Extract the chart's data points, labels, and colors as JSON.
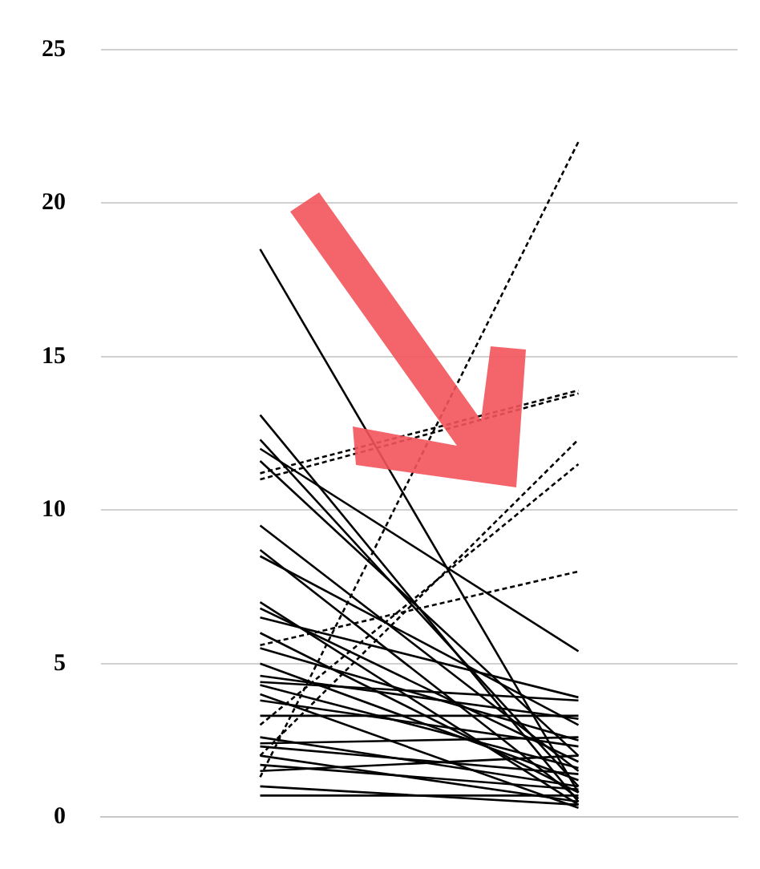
{
  "chart_data": {
    "type": "line",
    "categories": [
      null,
      null
    ],
    "ylim": [
      0,
      25
    ],
    "yticks": [
      0,
      5,
      10,
      15,
      20,
      25
    ],
    "grid": "y",
    "legend": false,
    "marker": "none",
    "series": [
      {
        "color": "#000000",
        "line_style": "dashed",
        "values": [
          1.3,
          22
        ]
      },
      {
        "color": "#000000",
        "line_style": "dashed",
        "values": [
          11.2,
          13.9
        ]
      },
      {
        "color": "#000000",
        "line_style": "dashed",
        "values": [
          11.0,
          13.8
        ]
      },
      {
        "color": "#000000",
        "line_style": "dashed",
        "values": [
          2.0,
          12.3
        ]
      },
      {
        "color": "#000000",
        "line_style": "dashed",
        "values": [
          3.0,
          11.5
        ]
      },
      {
        "color": "#000000",
        "line_style": "dashed",
        "values": [
          5.6,
          8.0
        ]
      },
      {
        "color": "#000000",
        "line_style": "solid",
        "values": [
          18.5,
          0.8
        ]
      },
      {
        "color": "#000000",
        "line_style": "solid",
        "values": [
          13.1,
          0.5
        ]
      },
      {
        "color": "#000000",
        "line_style": "solid",
        "values": [
          12.3,
          1.0
        ]
      },
      {
        "color": "#000000",
        "line_style": "solid",
        "values": [
          12.0,
          5.4
        ]
      },
      {
        "color": "#000000",
        "line_style": "solid",
        "values": [
          11.6,
          2.0
        ]
      },
      {
        "color": "#000000",
        "line_style": "solid",
        "values": [
          9.5,
          1.5
        ]
      },
      {
        "color": "#000000",
        "line_style": "solid",
        "values": [
          8.7,
          0.6
        ]
      },
      {
        "color": "#000000",
        "line_style": "solid",
        "values": [
          8.5,
          3.0
        ]
      },
      {
        "color": "#000000",
        "line_style": "solid",
        "values": [
          7.0,
          0.4
        ]
      },
      {
        "color": "#000000",
        "line_style": "solid",
        "values": [
          6.8,
          1.8
        ]
      },
      {
        "color": "#000000",
        "line_style": "solid",
        "values": [
          6.5,
          3.9
        ]
      },
      {
        "color": "#000000",
        "line_style": "solid",
        "values": [
          6.0,
          0.8
        ]
      },
      {
        "color": "#000000",
        "line_style": "solid",
        "values": [
          5.5,
          2.5
        ]
      },
      {
        "color": "#000000",
        "line_style": "solid",
        "values": [
          5.0,
          1.2
        ]
      },
      {
        "color": "#000000",
        "line_style": "solid",
        "values": [
          4.6,
          3.2
        ]
      },
      {
        "color": "#000000",
        "line_style": "solid",
        "values": [
          4.4,
          3.8
        ]
      },
      {
        "color": "#000000",
        "line_style": "solid",
        "values": [
          4.3,
          1.6
        ]
      },
      {
        "color": "#000000",
        "line_style": "solid",
        "values": [
          4.0,
          0.3
        ]
      },
      {
        "color": "#000000",
        "line_style": "solid",
        "values": [
          3.8,
          2.3
        ]
      },
      {
        "color": "#000000",
        "line_style": "solid",
        "values": [
          3.3,
          3.3
        ]
      },
      {
        "color": "#000000",
        "line_style": "solid",
        "values": [
          2.6,
          1.0
        ]
      },
      {
        "color": "#000000",
        "line_style": "solid",
        "values": [
          2.4,
          2.6
        ]
      },
      {
        "color": "#000000",
        "line_style": "solid",
        "values": [
          2.3,
          1.4
        ]
      },
      {
        "color": "#000000",
        "line_style": "solid",
        "values": [
          2.0,
          0.5
        ]
      },
      {
        "color": "#000000",
        "line_style": "solid",
        "values": [
          1.7,
          0.9
        ]
      },
      {
        "color": "#000000",
        "line_style": "solid",
        "values": [
          1.5,
          2.0
        ]
      },
      {
        "color": "#000000",
        "line_style": "solid",
        "values": [
          0.7,
          0.7
        ]
      },
      {
        "color": "#000000",
        "line_style": "solid",
        "values": [
          1.0,
          0.4
        ]
      }
    ]
  }
}
